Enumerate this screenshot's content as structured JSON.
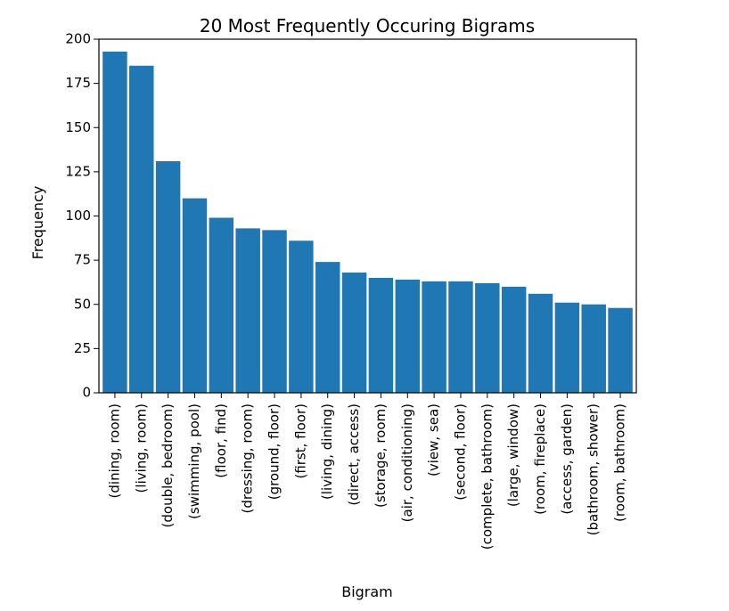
{
  "chart_data": {
    "type": "bar",
    "title": "20 Most Frequently Occuring Bigrams",
    "xlabel": "Bigram",
    "ylabel": "Frequency",
    "ylim": [
      0,
      200
    ],
    "yticks": [
      0,
      25,
      50,
      75,
      100,
      125,
      150,
      175,
      200
    ],
    "grid": false,
    "bar_color": "#1f77b4",
    "categories": [
      "(dining, room)",
      "(living, room)",
      "(double, bedroom)",
      "(swimming, pool)",
      "(floor, find)",
      "(dressing, room)",
      "(ground, floor)",
      "(first, floor)",
      "(living, dining)",
      "(direct, access)",
      "(storage, room)",
      "(air, conditioning)",
      "(view, sea)",
      "(second, floor)",
      "(complete, bathroom)",
      "(large, window)",
      "(room, fireplace)",
      "(access, garden)",
      "(bathroom, shower)",
      "(room, bathroom)"
    ],
    "values": [
      193,
      185,
      131,
      110,
      99,
      93,
      92,
      86,
      74,
      68,
      65,
      64,
      63,
      63,
      62,
      60,
      56,
      51,
      50,
      48
    ]
  }
}
